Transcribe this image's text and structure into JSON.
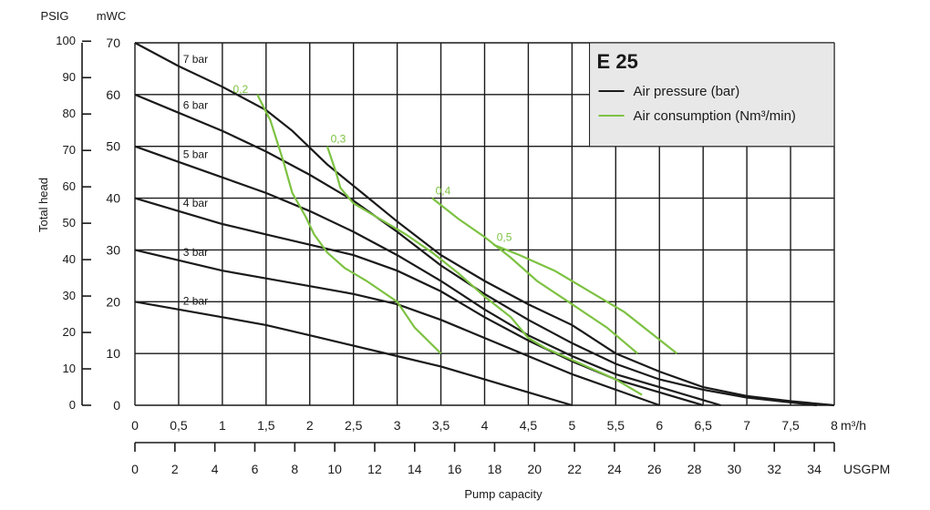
{
  "chart_data": {
    "type": "line",
    "title": "E 25",
    "colors": {
      "pressure": "#1a1a1a",
      "consumption": "#7dc242",
      "grid": "#1a1a1a",
      "legend_bg": "#e8e8e8"
    },
    "axes": {
      "x_primary": {
        "label": "m³/h",
        "range": [
          0,
          8
        ],
        "ticks": [
          "0",
          "0,5",
          "1",
          "1,5",
          "2",
          "2,5",
          "3",
          "3,5",
          "4",
          "4,5",
          "5",
          "5,5",
          "6",
          "6,5",
          "7",
          "7,5",
          "8"
        ]
      },
      "x_secondary": {
        "label": "USGPM",
        "range": [
          0,
          35
        ],
        "ticks": [
          "0",
          "2",
          "4",
          "6",
          "8",
          "10",
          "12",
          "14",
          "16",
          "18",
          "20",
          "22",
          "24",
          "26",
          "28",
          "30",
          "32",
          "34"
        ]
      },
      "x_title": "Pump capacity",
      "y_primary": {
        "label": "mWC",
        "range": [
          0,
          70
        ],
        "ticks": [
          "0",
          "10",
          "20",
          "30",
          "40",
          "50",
          "60",
          "70"
        ]
      },
      "y_secondary": {
        "label": "PSIG",
        "range": [
          0,
          100
        ],
        "ticks": [
          "0",
          "10",
          "20",
          "30",
          "40",
          "50",
          "60",
          "70",
          "80",
          "90",
          "100"
        ]
      },
      "y_title": "Total head"
    },
    "legend": {
      "position": "top-right",
      "items": [
        {
          "label": "Air pressure (bar)",
          "color": "#1a1a1a"
        },
        {
          "label": "Air consumption (Nm³/min)",
          "color": "#7dc242"
        }
      ]
    },
    "series": [
      {
        "name": "7 bar",
        "points": [
          [
            0,
            70
          ],
          [
            0.5,
            65.5
          ],
          [
            1,
            61.5
          ],
          [
            1.5,
            57
          ],
          [
            1.8,
            53
          ],
          [
            2.2,
            46.5
          ],
          [
            2.6,
            41
          ],
          [
            3,
            35.5
          ],
          [
            3.5,
            29
          ],
          [
            4,
            24
          ],
          [
            4.5,
            19.5
          ],
          [
            5,
            15.5
          ],
          [
            5.5,
            10
          ],
          [
            6,
            6.5
          ],
          [
            6.5,
            3.5
          ],
          [
            7,
            1.8
          ],
          [
            7.5,
            0.8
          ],
          [
            8,
            0
          ]
        ]
      },
      {
        "name": "6 bar",
        "points": [
          [
            0,
            60
          ],
          [
            0.5,
            56.5
          ],
          [
            1,
            53
          ],
          [
            1.5,
            49
          ],
          [
            2,
            44.5
          ],
          [
            2.5,
            39.5
          ],
          [
            3,
            33.5
          ],
          [
            3.5,
            27
          ],
          [
            4,
            21.5
          ],
          [
            4.5,
            16.5
          ],
          [
            5,
            12
          ],
          [
            5.5,
            8
          ],
          [
            6,
            5
          ],
          [
            6.5,
            3
          ],
          [
            7,
            1.5
          ],
          [
            7.8,
            0
          ]
        ]
      },
      {
        "name": "5 bar",
        "points": [
          [
            0,
            50
          ],
          [
            0.5,
            47
          ],
          [
            1,
            44
          ],
          [
            1.5,
            41
          ],
          [
            2,
            37.5
          ],
          [
            2.5,
            33.5
          ],
          [
            3,
            29
          ],
          [
            3.5,
            24
          ],
          [
            4,
            18.5
          ],
          [
            4.5,
            13.5
          ],
          [
            5,
            9.5
          ],
          [
            5.5,
            6
          ],
          [
            6,
            3.5
          ],
          [
            6.5,
            1
          ],
          [
            6.7,
            0
          ]
        ]
      },
      {
        "name": "4 bar",
        "points": [
          [
            0,
            40
          ],
          [
            0.5,
            37.5
          ],
          [
            1,
            35
          ],
          [
            1.5,
            33
          ],
          [
            2,
            31
          ],
          [
            2.5,
            29
          ],
          [
            3,
            26
          ],
          [
            3.5,
            22
          ],
          [
            4,
            17
          ],
          [
            4.5,
            12.5
          ],
          [
            5,
            8.5
          ],
          [
            5.5,
            5
          ],
          [
            6,
            2.5
          ],
          [
            6.5,
            0
          ]
        ]
      },
      {
        "name": "3 bar",
        "points": [
          [
            0,
            30
          ],
          [
            0.5,
            28
          ],
          [
            1,
            26
          ],
          [
            1.5,
            24.5
          ],
          [
            2,
            23
          ],
          [
            2.5,
            21.5
          ],
          [
            3,
            19.5
          ],
          [
            3.5,
            16.5
          ],
          [
            4,
            13
          ],
          [
            4.5,
            9.5
          ],
          [
            5,
            6
          ],
          [
            5.5,
            3
          ],
          [
            6,
            0
          ]
        ]
      },
      {
        "name": "2 bar",
        "points": [
          [
            0,
            20
          ],
          [
            0.5,
            18.5
          ],
          [
            1,
            17
          ],
          [
            1.5,
            15.5
          ],
          [
            2,
            13.5
          ],
          [
            2.5,
            11.5
          ],
          [
            3,
            9.5
          ],
          [
            3.5,
            7.5
          ],
          [
            4,
            5
          ],
          [
            4.5,
            2.5
          ],
          [
            5,
            0
          ]
        ]
      }
    ],
    "consumption_series": [
      {
        "name": "0,2",
        "points": [
          [
            1.4,
            60
          ],
          [
            1.55,
            55
          ],
          [
            1.7,
            47
          ],
          [
            1.8,
            41
          ],
          [
            1.95,
            36.5
          ],
          [
            2.05,
            33
          ],
          [
            2.2,
            29.5
          ],
          [
            2.4,
            26.5
          ],
          [
            2.65,
            24
          ],
          [
            3,
            20
          ],
          [
            3.2,
            15
          ],
          [
            3.5,
            10
          ]
        ]
      },
      {
        "name": "0,3",
        "points": [
          [
            2.2,
            50
          ],
          [
            2.3,
            45
          ],
          [
            2.35,
            42
          ],
          [
            2.5,
            39
          ],
          [
            2.8,
            36
          ],
          [
            3.1,
            33
          ],
          [
            3.4,
            29.5
          ],
          [
            3.7,
            25.5
          ],
          [
            4,
            21
          ],
          [
            4.3,
            17
          ],
          [
            4.5,
            13
          ],
          [
            4.7,
            11
          ],
          [
            5.1,
            8
          ],
          [
            5.5,
            5
          ],
          [
            5.8,
            2
          ]
        ]
      },
      {
        "name": "0,4",
        "points": [
          [
            3.4,
            40
          ],
          [
            3.7,
            36
          ],
          [
            4,
            32.5
          ],
          [
            4.3,
            28.5
          ],
          [
            4.6,
            24
          ],
          [
            5,
            19.5
          ],
          [
            5.4,
            15
          ],
          [
            5.75,
            10
          ]
        ]
      },
      {
        "name": "0,5",
        "points": [
          [
            4.1,
            31
          ],
          [
            4.4,
            29
          ],
          [
            4.8,
            26
          ],
          [
            5.2,
            22
          ],
          [
            5.6,
            18
          ],
          [
            6.2,
            10
          ]
        ]
      }
    ]
  }
}
